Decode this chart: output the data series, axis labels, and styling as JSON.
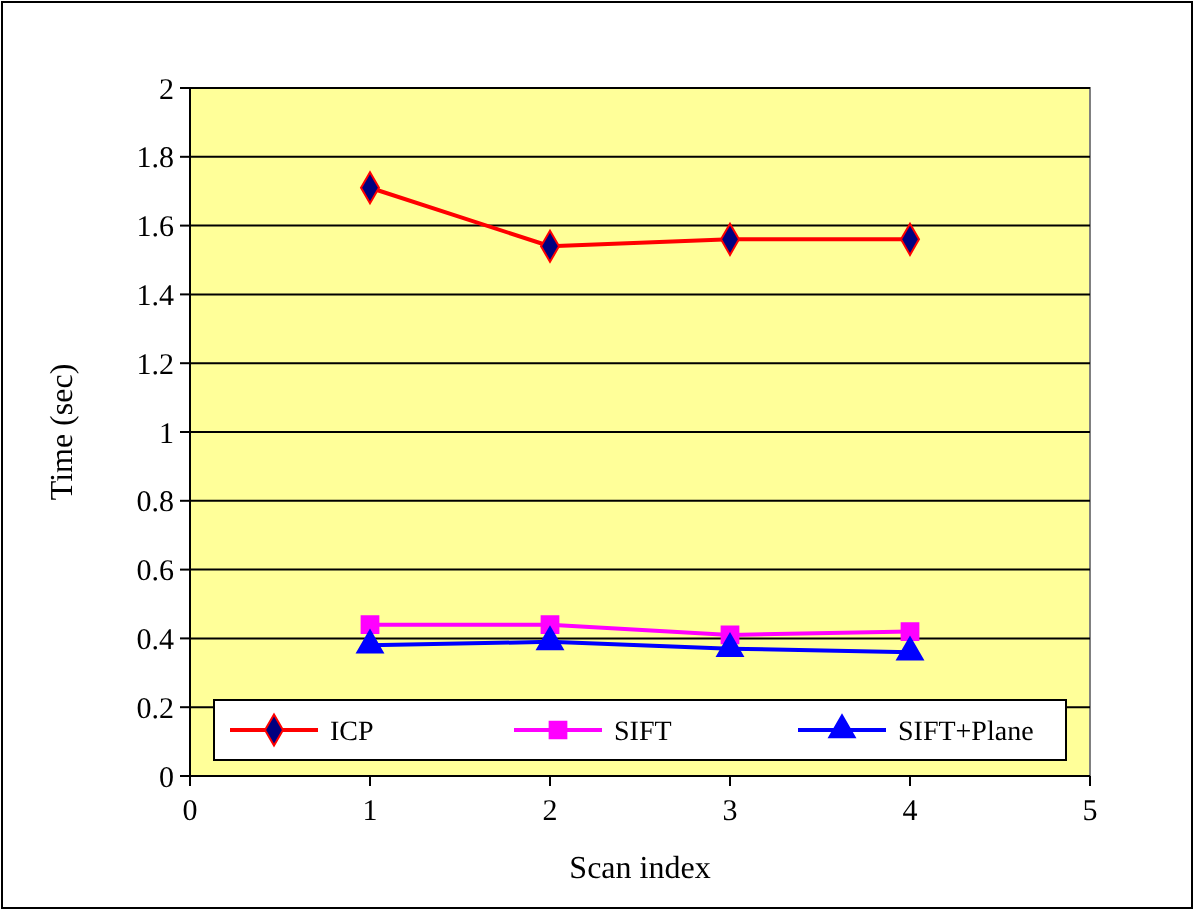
{
  "chart_data": {
    "type": "line",
    "xlabel": "Scan index",
    "ylabel": "Time (sec)",
    "x": [
      1,
      2,
      3,
      4
    ],
    "series": [
      {
        "name": "ICP",
        "color": "#ff0000",
        "marker": "diamond",
        "values": [
          1.71,
          1.54,
          1.56,
          1.56
        ]
      },
      {
        "name": "SIFT",
        "color": "#ff00ff",
        "marker": "square",
        "values": [
          0.44,
          0.44,
          0.41,
          0.42
        ]
      },
      {
        "name": "SIFT+Plane",
        "color": "#0000ff",
        "marker": "triangle",
        "values": [
          0.38,
          0.39,
          0.37,
          0.36
        ]
      }
    ],
    "xlim": [
      0,
      5
    ],
    "xticks": [
      0,
      1,
      2,
      3,
      4,
      5
    ],
    "ylim": [
      0,
      2
    ],
    "yticks": [
      0,
      0.2,
      0.4,
      0.6,
      0.8,
      1,
      1.2,
      1.4,
      1.6,
      1.8,
      2
    ],
    "grid": "y",
    "legend": "bottom"
  }
}
